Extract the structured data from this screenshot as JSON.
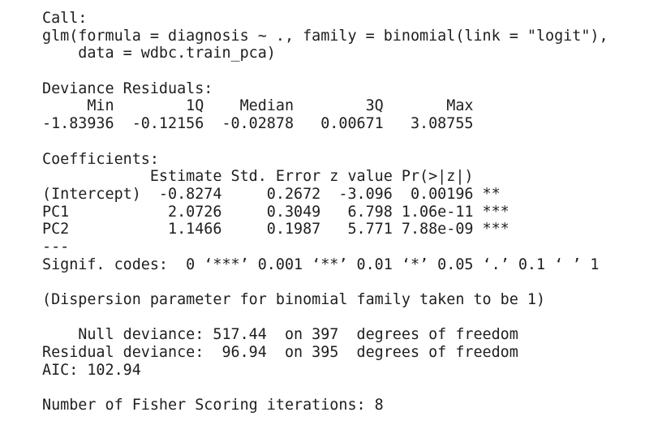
{
  "console": {
    "blocks": [
      {
        "lines": [
          "Call:",
          "glm(formula = diagnosis ~ ., family = binomial(link = \"logit\"),",
          "    data = wdbc.train_pca)"
        ]
      },
      {
        "lines": [
          "Deviance Residuals: ",
          "     Min        1Q    Median        3Q       Max  ",
          "-1.83936  -0.12156  -0.02878   0.00671   3.08755  "
        ]
      },
      {
        "lines": [
          "Coefficients:",
          "            Estimate Std. Error z value Pr(>|z|)    ",
          "(Intercept)  -0.8274     0.2672  -3.096  0.00196 ** ",
          "PC1           2.0726     0.3049   6.798 1.06e-11 ***",
          "PC2           1.1466     0.1987   5.771 7.88e-09 ***",
          "---",
          "Signif. codes:  0 ‘***’ 0.001 ‘**’ 0.01 ‘*’ 0.05 ‘.’ 0.1 ‘ ’ 1"
        ]
      },
      {
        "lines": [
          "(Dispersion parameter for binomial family taken to be 1)"
        ]
      },
      {
        "lines": [
          "    Null deviance: 517.44  on 397  degrees of freedom",
          "Residual deviance:  96.94  on 395  degrees of freedom",
          "AIC: 102.94"
        ]
      },
      {
        "lines": [
          "Number of Fisher Scoring iterations: 8"
        ]
      }
    ]
  }
}
